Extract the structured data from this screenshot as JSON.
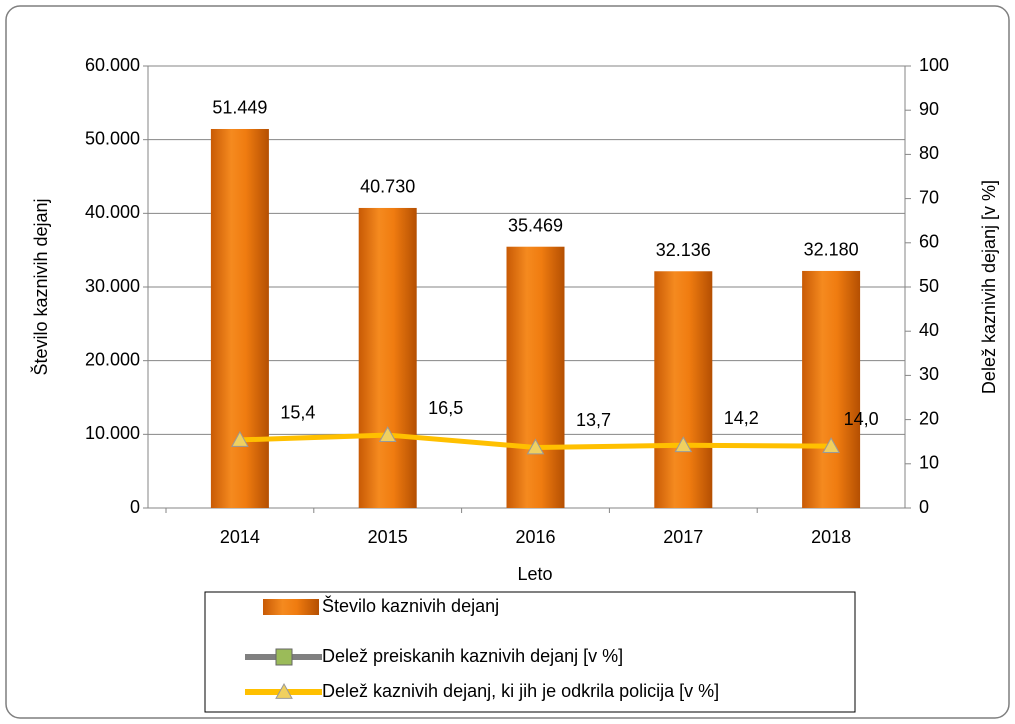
{
  "chart_data": {
    "type": "bar",
    "categories": [
      "2014",
      "2015",
      "2016",
      "2017",
      "2018"
    ],
    "x_label": "Leto",
    "y_label": "Število kaznivih dejanj",
    "y2_label": "Delež kaznivih dejanj [v %]",
    "ylim": [
      0,
      60000
    ],
    "yticks": [
      0,
      {
        "value": 10000,
        "label": "10.000"
      },
      {
        "value": 20000,
        "label": "20.000"
      },
      {
        "value": 30000,
        "label": "30.000"
      },
      {
        "value": 40000,
        "label": "40.000"
      },
      {
        "value": 50000,
        "label": "50.000"
      },
      {
        "value": 60000,
        "label": "60.000"
      }
    ],
    "y2lim": [
      0,
      100
    ],
    "y2ticks": [
      0,
      10,
      20,
      30,
      40,
      50,
      60,
      70,
      80,
      90,
      100
    ],
    "grid": true,
    "legend": "bottom",
    "series": [
      {
        "name": "Število kaznivih dejanj",
        "type": "bar",
        "color": "#f07c10",
        "values": [
          51449,
          40730,
          35469,
          32136,
          32180
        ],
        "value_labels": [
          "51.449",
          "40.730",
          "35.469",
          "32.136",
          "32.180"
        ]
      },
      {
        "name": "Delež preiskanih kaznivih dejanj [v %]",
        "type": "line",
        "axis": "y2",
        "color": "#808080",
        "values": [
          null,
          null,
          null,
          null,
          null
        ]
      },
      {
        "name": "Delež kaznivih dejanj, ki jih je odkrila policija [v %]",
        "type": "line",
        "axis": "y2",
        "color": "#ffc000",
        "values": [
          15.4,
          16.5,
          13.7,
          14.2,
          14.0
        ],
        "value_labels": [
          "15,4",
          "16,5",
          "13,7",
          "14,2",
          "14,0"
        ]
      }
    ]
  }
}
